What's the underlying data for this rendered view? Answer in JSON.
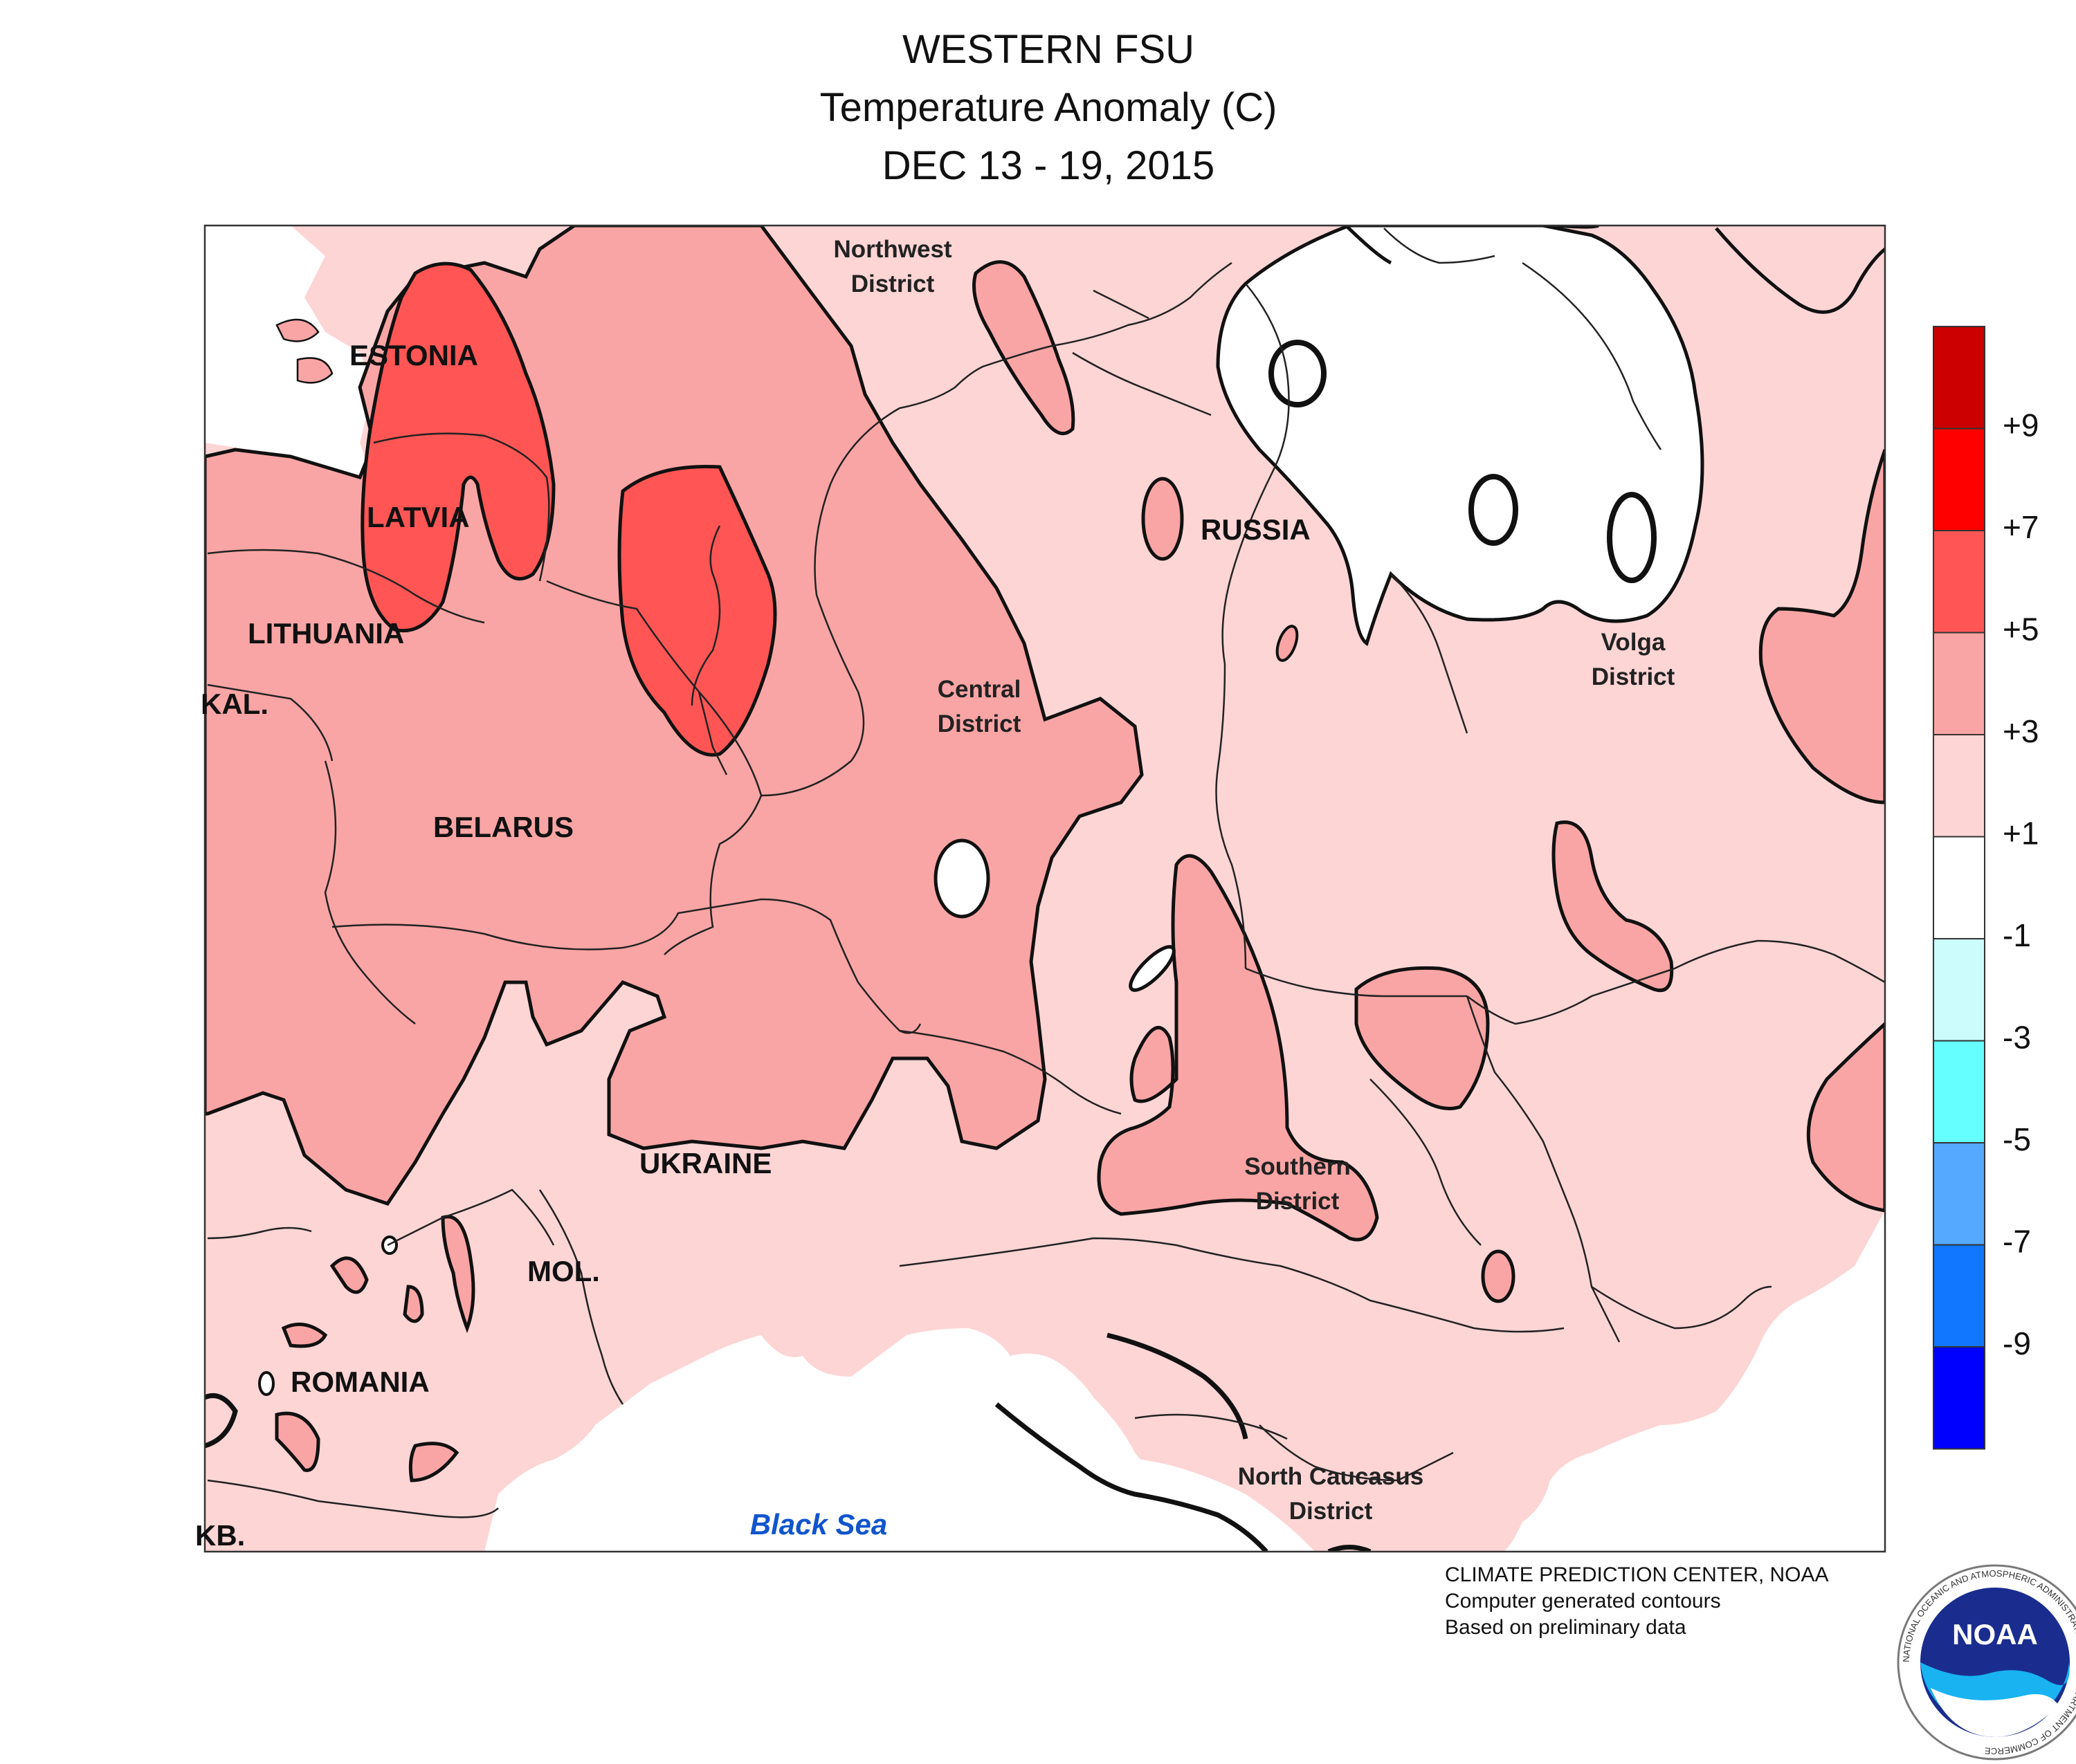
{
  "title": {
    "line1": "WESTERN FSU",
    "line2": "Temperature Anomaly (C)",
    "line3": "DEC 13 - 19, 2015"
  },
  "map_labels": {
    "estonia": "ESTONIA",
    "latvia": "LATVIA",
    "lithuania": "LITHUANIA",
    "kal": "KAL.",
    "belarus": "BELARUS",
    "ukraine": "UKRAINE",
    "mol": "MOL.",
    "romania": "ROMANIA",
    "kb": "KB.",
    "russia": "RUSSIA",
    "northwest_1": "Northwest",
    "northwest_2": "District",
    "central_1": "Central",
    "central_2": "District",
    "volga_1": "Volga",
    "volga_2": "District",
    "southern_1": "Southern",
    "southern_2": "District",
    "caucasus_1": "North Caucasus",
    "caucasus_2": "District",
    "black_sea": "Black Sea"
  },
  "legend": {
    "ticks": [
      "+9",
      "+7",
      "+5",
      "+3",
      "+1",
      "-1",
      "-3",
      "-5",
      "-7",
      "-9"
    ],
    "colors": [
      "#cc0000",
      "#ff0000",
      "#ff5555",
      "#f9a5a5",
      "#fdd5d5",
      "#ffffff",
      "#ccfcfc",
      "#66ffff",
      "#55aaff",
      "#1177ff",
      "#0000ff"
    ]
  },
  "credits": {
    "line1": "CLIMATE PREDICTION CENTER, NOAA",
    "line2": "Computer generated contours",
    "line3": "Based on preliminary data"
  },
  "logo": {
    "text": "NOAA",
    "ring_text": "NATIONAL OCEANIC AND ATMOSPHERIC ADMINISTRATION · U.S. DEPARTMENT OF COMMERCE"
  }
}
